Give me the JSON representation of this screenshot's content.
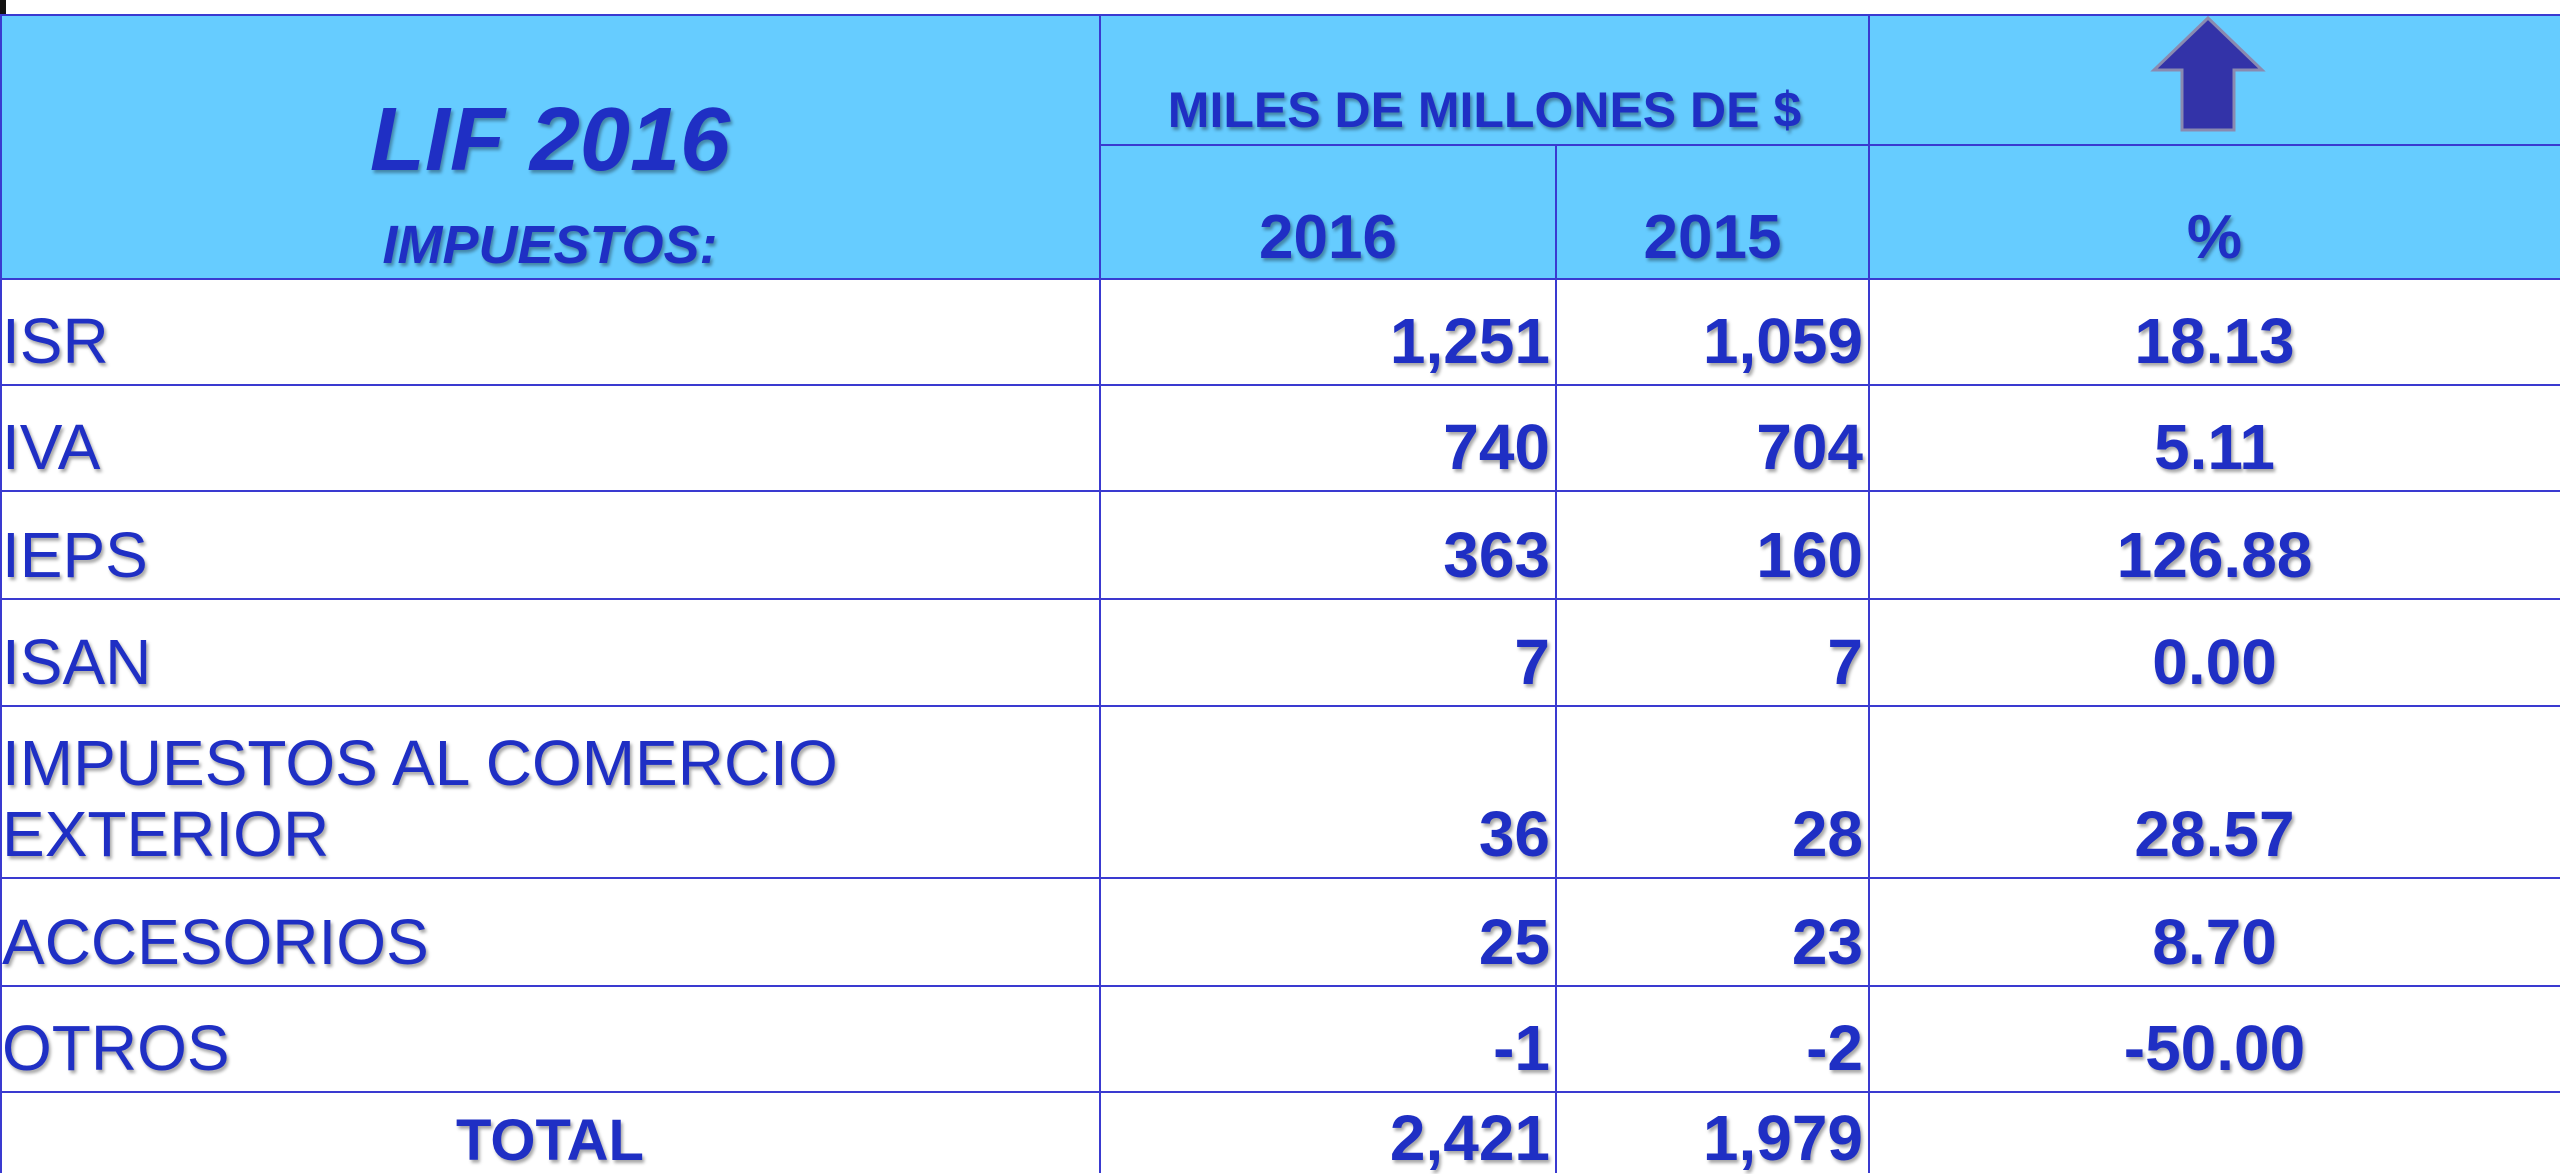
{
  "header": {
    "title": "LIF 2016",
    "subtitle": "IMPUESTOS:",
    "units": "MILES DE MILLONES DE $",
    "columns": [
      "2016",
      "2015",
      "%"
    ]
  },
  "table": {
    "rows": [
      [
        "ISR",
        "1,251",
        "1,059",
        "18.13"
      ],
      [
        "IVA",
        "740",
        "704",
        "5.11"
      ],
      [
        "IEPS",
        "363",
        "160",
        "126.88"
      ],
      [
        "ISAN",
        "7",
        "7",
        "0.00"
      ],
      [
        "IMPUESTOS AL COMERCIO EXTERIOR",
        "36",
        "28",
        "28.57"
      ],
      [
        "ACCESORIOS",
        "25",
        "23",
        "8.70"
      ],
      [
        "OTROS",
        "-1",
        "-2",
        "-50.00"
      ]
    ],
    "total": [
      "TOTAL",
      "2,421",
      "1,979"
    ]
  }
}
